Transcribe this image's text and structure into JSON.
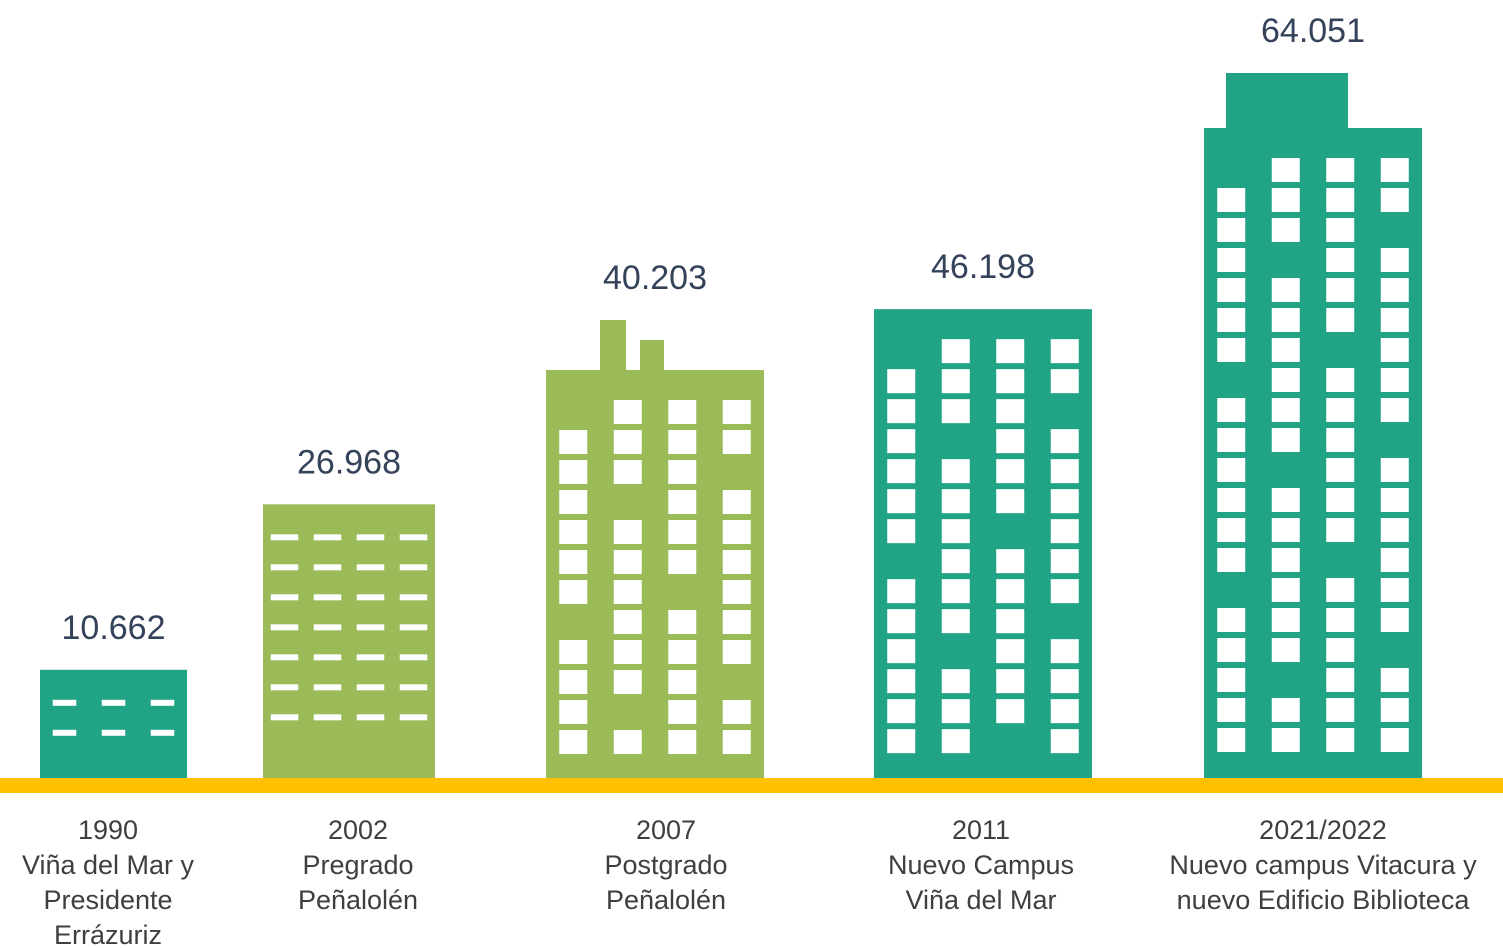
{
  "chart_data": {
    "type": "bar",
    "categories": [
      "1990",
      "2002",
      "2007",
      "2011",
      "2021/2022"
    ],
    "descriptions": [
      [
        "Viña del Mar y",
        "Presidente",
        "Errázuriz"
      ],
      [
        "Pregrado",
        "Peñalolén"
      ],
      [
        "Postgrado",
        "Peñalolén"
      ],
      [
        "Nuevo Campus",
        "Viña del Mar"
      ],
      [
        "Nuevo campus Vitacura y",
        "nuevo Edificio Biblioteca"
      ]
    ],
    "values": [
      10662,
      26968,
      40203,
      46198,
      64051
    ],
    "value_labels": [
      "10.662",
      "26.968",
      "40.203",
      "46.198",
      "64.051"
    ],
    "colors": [
      "#21a386",
      "#9bbb59",
      "#9bbb59",
      "#21a386",
      "#21a386"
    ],
    "baseline_color": "#ffc000"
  }
}
